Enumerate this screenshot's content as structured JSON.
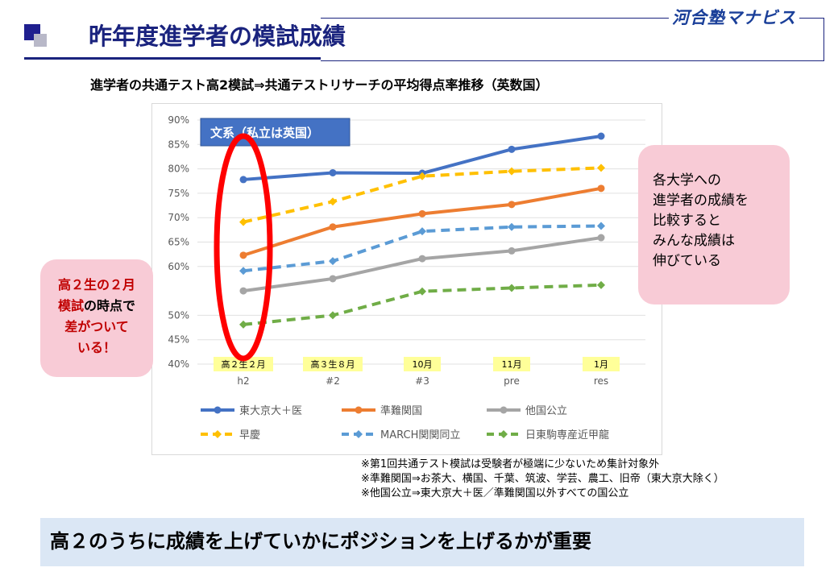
{
  "header": {
    "title": "昨年度進学者の模試成績",
    "logo": "河合塾マナビス"
  },
  "subtitle": "進学者の共通テスト高2模試⇒共通テストリサーチの平均得点率推移（英数国）",
  "chart_data": {
    "type": "line",
    "label_box": "文系（私立は英国）",
    "x": [
      "h2",
      "#2",
      "#3",
      "pre",
      "res"
    ],
    "x_badges": [
      "高２生２月",
      "高３生８月",
      "10月",
      "11月",
      "1月"
    ],
    "yticks": [
      "90%",
      "85%",
      "80%",
      "75%",
      "70%",
      "65%",
      "60%",
      "50%",
      "45%",
      "40%"
    ],
    "ylim": [
      40,
      90
    ],
    "grid": true,
    "legend_position": "bottom",
    "series": [
      {
        "name": "東大京大＋医",
        "values": [
          77.8,
          79.2,
          79.1,
          84.0,
          86.7
        ],
        "color": "#4472c4",
        "dashed": false
      },
      {
        "name": "準難関国",
        "values": [
          62.3,
          68.1,
          70.8,
          72.7,
          76.0
        ],
        "color": "#ed7d31",
        "dashed": false
      },
      {
        "name": "他国公立",
        "values": [
          55.0,
          57.5,
          61.6,
          63.2,
          65.9
        ],
        "color": "#a5a5a5",
        "dashed": false
      },
      {
        "name": "早慶",
        "values": [
          69.1,
          73.3,
          78.5,
          79.5,
          80.2
        ],
        "color": "#ffc000",
        "dashed": true
      },
      {
        "name": "MARCH関関同立",
        "values": [
          59.1,
          61.1,
          67.2,
          68.1,
          68.3
        ],
        "color": "#5b9bd5",
        "dashed": true
      },
      {
        "name": "日東駒専産近甲龍",
        "values": [
          48.1,
          50.0,
          54.9,
          55.6,
          56.2
        ],
        "color": "#70ad47",
        "dashed": true
      }
    ]
  },
  "callouts": {
    "left_line1": "高２生の２月",
    "left_line2_red": "模試",
    "left_line2_black": "の時点で",
    "left_line3": "差がついて",
    "left_line4": "いる！",
    "right_lines": [
      "各大学への",
      "進学者の成績を",
      "比較すると",
      "みんな成績は",
      "伸びている"
    ]
  },
  "notes": [
    "※第1回共通テスト模試は受験者が極端に少ないため集計対象外",
    "※準難関国⇒お茶大、横国、千葉、筑波、学芸、農工、旧帝（東大京大除く）",
    "※他国公立⇒東大京大＋医／準難関国以外すべての国公立"
  ],
  "banner": "高２のうちに成績を上げていかにポジションを上げるかが重要",
  "colors": {
    "title": "#1a237e",
    "callout_bg": "#f8cbd6",
    "highlight_ellipse": "#ff0000",
    "banner_bg": "#dbe7f5",
    "badge_bg": "#ffff99"
  }
}
